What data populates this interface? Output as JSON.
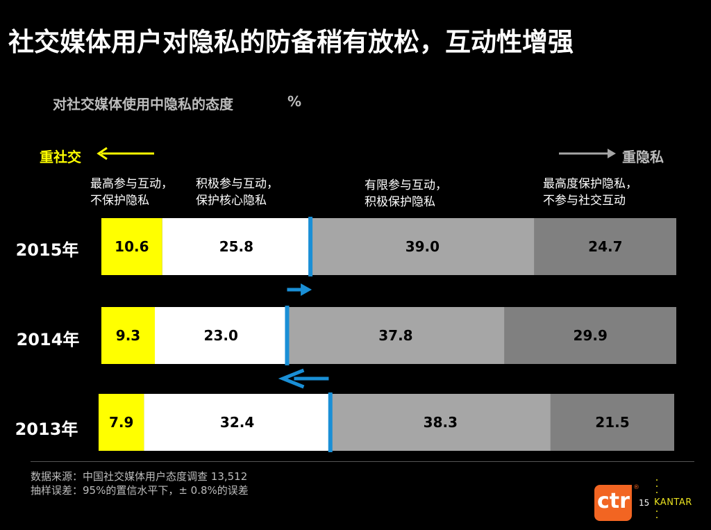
{
  "title": "社交媒体用户对隐私的防备稍有放松，互动性增强",
  "subtitle": "对社交媒体使用中隐私的态度",
  "unit": "%",
  "direction": {
    "left_label": "重社交",
    "right_label": "重隐私"
  },
  "category_labels": [
    [
      "最高参与互动，",
      "不保护隐私"
    ],
    [
      "积极参与互动，",
      "保护核心隐私"
    ],
    [
      "有限参与互动，",
      "积极保护隐私"
    ],
    [
      "最高度保护隐私，",
      "不参与社交互动"
    ]
  ],
  "chart_data": {
    "type": "bar",
    "orientation": "horizontal",
    "stacked": true,
    "percent": true,
    "categories": [
      "2015年",
      "2014年",
      "2013年"
    ],
    "series": [
      {
        "name": "最高参与互动，不保护隐私",
        "values": [
          10.6,
          9.3,
          7.9
        ]
      },
      {
        "name": "积极参与互动，保护核心隐私",
        "values": [
          25.8,
          23.0,
          32.4
        ]
      },
      {
        "name": "有限参与互动，积极保护隐私",
        "values": [
          39.0,
          37.8,
          38.3
        ]
      },
      {
        "name": "最高度保护隐私，不参与社交互动",
        "values": [
          24.7,
          29.9,
          21.5
        ]
      }
    ],
    "colors": [
      "#ffff00",
      "#ffffff",
      "#a6a6a6",
      "#808080"
    ],
    "divider_color": "#1a8fd6"
  },
  "shift_arrows": [
    {
      "between": "2015年-2014年",
      "direction": "right"
    },
    {
      "between": "2014年-2013年",
      "direction": "left"
    }
  ],
  "footer": {
    "source": "数据来源：中国社交媒体用户态度调查  13,512",
    "error": "抽样误差：95%的置信水平下，± 0.8%的误差"
  },
  "branding": {
    "ctr_logo": "ctr",
    "registered": "®",
    "page_number": "15",
    "kantar": "KANTAR"
  }
}
